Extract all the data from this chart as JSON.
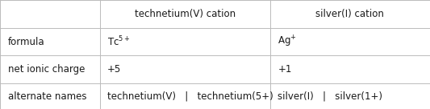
{
  "col_headers": [
    "technetium(V) cation",
    "silver(I) cation"
  ],
  "row_labels": [
    "formula",
    "net ionic charge",
    "alternate names"
  ],
  "cell_col1": [
    "Tc$^{5+}$",
    "+5",
    "technetium(V)   |   technetium(5+)"
  ],
  "cell_col2": [
    "Ag$^{+}$",
    "+1",
    "silver(I)   |   silver(1+)"
  ],
  "bg_color": "#ffffff",
  "line_color": "#bbbbbb",
  "text_color": "#1a1a1a",
  "font_size": 8.5,
  "col_bounds": [
    0.0,
    0.232,
    0.628,
    1.0
  ],
  "row_bounds": [
    0.0,
    0.255,
    0.51,
    0.765,
    1.0
  ]
}
